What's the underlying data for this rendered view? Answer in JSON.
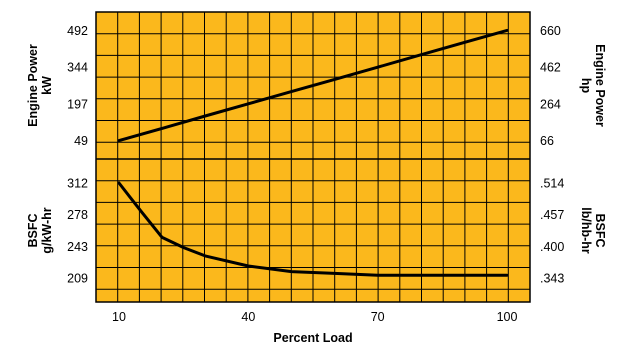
{
  "chart_data": [
    {
      "type": "line",
      "panel": "top",
      "title": "",
      "xlabel": "Percent Load",
      "ylabel": "Engine Power kW",
      "ylabel_lines": [
        "Engine Power",
        "kW"
      ],
      "y2label": "Engine Power hp",
      "y2label_lines": [
        "Engine Power",
        "hp"
      ],
      "x_ticks": [
        "10",
        "40",
        "70",
        "100"
      ],
      "xlim": [
        10,
        100
      ],
      "y_ticks": [
        "492",
        "344",
        "197",
        "49"
      ],
      "y_tick_values": [
        492,
        344,
        197,
        49
      ],
      "y2_ticks": [
        "660",
        "462",
        "264",
        "66"
      ],
      "y2_tick_values": [
        660,
        462,
        264,
        66
      ],
      "ylim": [
        -25,
        566
      ],
      "grid": true,
      "series": [
        {
          "x": [
            10,
            20,
            30,
            40,
            50,
            60,
            70,
            80,
            90,
            100
          ],
          "y": [
            49,
            98,
            148,
            197,
            246,
            295,
            344,
            394,
            443,
            492
          ]
        }
      ]
    },
    {
      "type": "line",
      "panel": "bottom",
      "title": "",
      "xlabel": "Percent Load",
      "ylabel": "BSFC g/kW-hr",
      "ylabel_lines": [
        "BSFC",
        "g/kW-hr"
      ],
      "y2label": "BSFC lb/hb-hr",
      "y2label_lines": [
        "BSFC",
        "lb/hb-hr"
      ],
      "x_ticks": [
        "10",
        "40",
        "70",
        "100"
      ],
      "xlim": [
        10,
        100
      ],
      "y_ticks": [
        "312",
        "278",
        "243",
        "209"
      ],
      "y_tick_values": [
        312,
        278,
        243,
        209
      ],
      "y2_ticks": [
        ".514",
        ".457",
        ".400",
        ".343"
      ],
      "y2_tick_values": [
        0.514,
        0.457,
        0.4,
        0.343
      ],
      "ylim": [
        183,
        338
      ],
      "grid": true,
      "series": [
        {
          "x": [
            10,
            15,
            20,
            25,
            30,
            40,
            50,
            60,
            70,
            80,
            90,
            100
          ],
          "y": [
            312,
            282,
            253,
            242,
            233,
            222,
            216,
            214,
            212,
            212,
            212,
            212
          ]
        }
      ]
    }
  ],
  "colors": {
    "plot_background": "#FBB81C",
    "grid": "#000000",
    "line": "#000000",
    "page_background": "#FFFFFF"
  }
}
